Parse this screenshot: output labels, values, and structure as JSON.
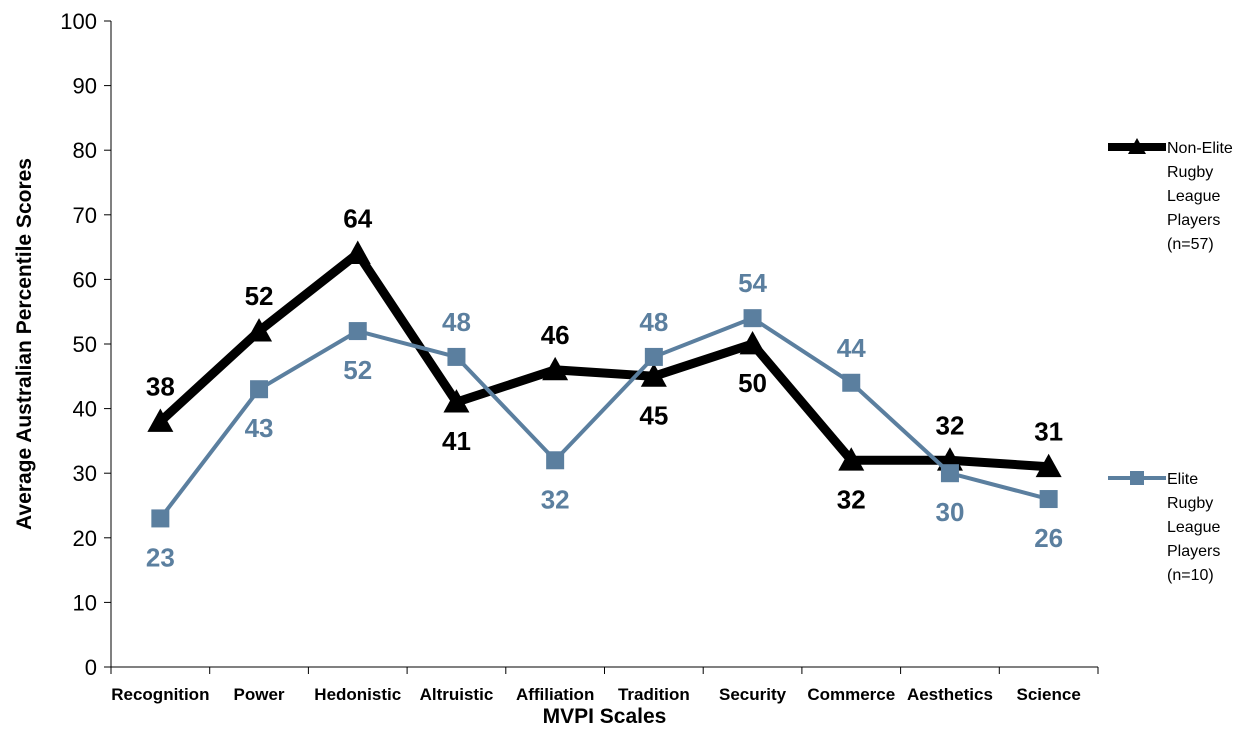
{
  "chart_data": {
    "type": "line",
    "xlabel": "MVPI Scales",
    "ylabel": "Average Australian Percentile Scores",
    "ylim": [
      0,
      100
    ],
    "yticks": [
      0,
      10,
      20,
      30,
      40,
      50,
      60,
      70,
      80,
      90,
      100
    ],
    "categories": [
      "Recognition",
      "Power",
      "Hedonistic",
      "Altruistic",
      "Affiliation",
      "Tradition",
      "Security",
      "Commerce",
      "Aesthetics",
      "Science"
    ],
    "grid": false,
    "legend_position": "right",
    "series": [
      {
        "name_lines": [
          "Non-Elite",
          "Rugby",
          "League",
          "Players",
          "(n=57)"
        ],
        "color": "#000000",
        "marker": "triangle",
        "values": [
          38,
          52,
          64,
          41,
          46,
          45,
          50,
          32,
          32,
          31
        ],
        "label_positions": [
          "above",
          "above",
          "above",
          "below",
          "above",
          "below",
          "below",
          "below",
          "above",
          "above"
        ]
      },
      {
        "name_lines": [
          "Elite",
          "Rugby",
          "League",
          "Players",
          "(n=10)"
        ],
        "color": "#5b7f9f",
        "marker": "square",
        "values": [
          23,
          43,
          52,
          48,
          32,
          48,
          54,
          44,
          30,
          26
        ],
        "label_positions": [
          "below",
          "below",
          "below",
          "above",
          "below",
          "above",
          "above",
          "above",
          "below",
          "below"
        ]
      }
    ]
  }
}
